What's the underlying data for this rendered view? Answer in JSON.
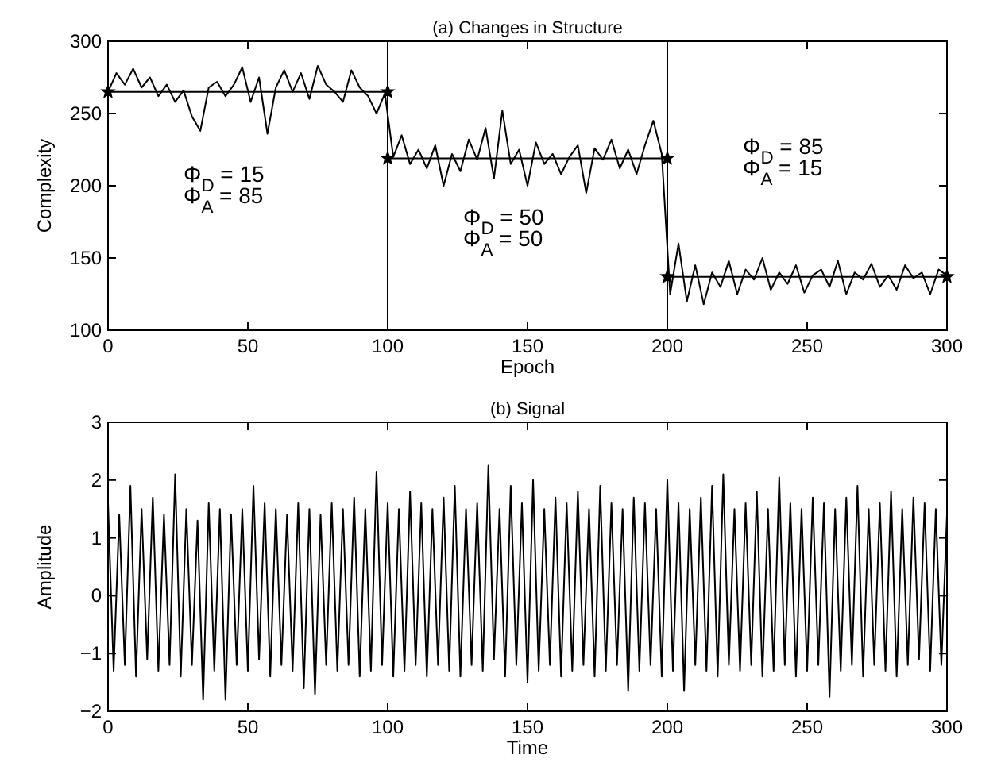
{
  "chart_data": [
    {
      "type": "line",
      "title": "(a) Changes in Structure",
      "xlabel": "Epoch",
      "ylabel": "Complexity",
      "xlim": [
        0,
        300
      ],
      "ylim": [
        100,
        300
      ],
      "xticks": [
        0,
        50,
        100,
        150,
        200,
        250,
        300
      ],
      "yticks": [
        100,
        150,
        200,
        250,
        300
      ],
      "grid": false,
      "series": [
        {
          "color": "#000000",
          "marker": "none",
          "x": [
            0,
            3,
            6,
            9,
            12,
            15,
            18,
            21,
            24,
            27,
            30,
            33,
            36,
            39,
            42,
            45,
            48,
            51,
            54,
            57,
            60,
            63,
            66,
            69,
            72,
            75,
            78,
            81,
            84,
            87,
            90,
            93,
            96,
            99,
            102,
            105,
            108,
            111,
            114,
            117,
            120,
            123,
            126,
            129,
            132,
            135,
            138,
            141,
            144,
            147,
            150,
            153,
            156,
            159,
            162,
            165,
            168,
            171,
            174,
            177,
            180,
            183,
            186,
            189,
            192,
            195,
            198,
            201,
            204,
            207,
            210,
            213,
            216,
            219,
            222,
            225,
            228,
            231,
            234,
            237,
            240,
            243,
            246,
            249,
            252,
            255,
            258,
            261,
            264,
            267,
            270,
            273,
            276,
            279,
            282,
            285,
            288,
            291,
            294,
            297,
            300
          ],
          "values": [
            265,
            278,
            270,
            281,
            268,
            275,
            262,
            270,
            258,
            266,
            248,
            238,
            268,
            272,
            262,
            270,
            282,
            258,
            275,
            236,
            268,
            280,
            265,
            278,
            260,
            283,
            270,
            265,
            258,
            280,
            268,
            262,
            250,
            264,
            220,
            235,
            215,
            225,
            212,
            228,
            200,
            222,
            210,
            232,
            218,
            240,
            205,
            252,
            215,
            225,
            200,
            230,
            215,
            222,
            208,
            220,
            228,
            195,
            226,
            218,
            232,
            212,
            225,
            208,
            228,
            245,
            222,
            125,
            160,
            120,
            145,
            118,
            140,
            130,
            148,
            125,
            142,
            135,
            150,
            128,
            140,
            132,
            145,
            126,
            138,
            142,
            130,
            148,
            125,
            140,
            135,
            146,
            130,
            138,
            128,
            145,
            136,
            140,
            125,
            142,
            138
          ]
        },
        {
          "color": "#000000",
          "marker": "star",
          "x": [
            0,
            100
          ],
          "values": [
            265,
            265
          ]
        },
        {
          "color": "#000000",
          "marker": "star",
          "x": [
            100,
            200
          ],
          "values": [
            219,
            219
          ]
        },
        {
          "color": "#000000",
          "marker": "star",
          "x": [
            200,
            300
          ],
          "values": [
            137,
            137
          ]
        }
      ],
      "ref_lines": [
        {
          "axis": "x",
          "value": 100,
          "color": "#000000"
        },
        {
          "axis": "x",
          "value": 200,
          "color": "#000000"
        }
      ],
      "annotations": [
        "Φ$_{D}$ = 15",
        "Φ$_{A}$ = 85",
        "Φ$_{D}$ = 50",
        "Φ$_{A}$ = 50",
        "Φ$_{D}$ = 85",
        "Φ$_{A}$ = 15"
      ]
    },
    {
      "type": "line",
      "title": "(b) Signal",
      "xlabel": "Time",
      "ylabel": "Amplitude",
      "xlim": [
        0,
        300
      ],
      "ylim": [
        -2,
        3
      ],
      "xticks": [
        0,
        50,
        100,
        150,
        200,
        250,
        300
      ],
      "yticks": [
        {
          "value": -2,
          "label": "−2"
        },
        {
          "value": -1,
          "label": "−1"
        },
        0,
        1,
        2,
        3
      ],
      "grid": false,
      "series": [
        {
          "color": "#000000",
          "marker": "none",
          "x": [
            0,
            2,
            4,
            6,
            8,
            10,
            12,
            14,
            16,
            18,
            20,
            22,
            24,
            26,
            28,
            30,
            32,
            34,
            36,
            38,
            40,
            42,
            44,
            46,
            48,
            50,
            52,
            54,
            56,
            58,
            60,
            62,
            64,
            66,
            68,
            70,
            72,
            74,
            76,
            78,
            80,
            82,
            84,
            86,
            88,
            90,
            92,
            94,
            96,
            98,
            100,
            102,
            104,
            106,
            108,
            110,
            112,
            114,
            116,
            118,
            120,
            122,
            124,
            126,
            128,
            130,
            132,
            134,
            136,
            138,
            140,
            142,
            144,
            146,
            148,
            150,
            152,
            154,
            156,
            158,
            160,
            162,
            164,
            166,
            168,
            170,
            172,
            174,
            176,
            178,
            180,
            182,
            184,
            186,
            188,
            190,
            192,
            194,
            196,
            198,
            200,
            202,
            204,
            206,
            208,
            210,
            212,
            214,
            216,
            218,
            220,
            222,
            224,
            226,
            228,
            230,
            232,
            234,
            236,
            238,
            240,
            242,
            244,
            246,
            248,
            250,
            252,
            254,
            256,
            258,
            260,
            262,
            264,
            266,
            268,
            270,
            272,
            274,
            276,
            278,
            280,
            282,
            284,
            286,
            288,
            290,
            292,
            294,
            296,
            298,
            300
          ],
          "values": [
            1.6,
            -1.3,
            1.4,
            -1.2,
            1.9,
            -1.4,
            1.5,
            -1.1,
            1.7,
            -1.3,
            1.4,
            -1.2,
            2.1,
            -1.4,
            1.5,
            -1.2,
            1.3,
            -1.8,
            1.6,
            -1.3,
            1.5,
            -1.8,
            1.4,
            -1.2,
            1.5,
            -1.3,
            1.9,
            -1.1,
            1.6,
            -1.4,
            1.5,
            -1.2,
            1.4,
            -1.3,
            1.6,
            -1.6,
            1.5,
            -1.7,
            1.4,
            -1.2,
            1.6,
            -1.3,
            1.5,
            -1.2,
            1.7,
            -1.4,
            1.5,
            -1.3,
            2.15,
            -1.2,
            1.6,
            -1.4,
            1.5,
            -1.3,
            1.8,
            -1.2,
            1.6,
            -1.4,
            1.5,
            -1.2,
            1.7,
            -1.3,
            1.9,
            -1.4,
            1.5,
            -1.2,
            1.6,
            -1.3,
            2.25,
            -1.1,
            1.5,
            -1.4,
            1.9,
            -1.2,
            1.6,
            -1.5,
            2.0,
            -1.3,
            1.5,
            -1.2,
            1.7,
            -1.4,
            1.6,
            -1.3,
            1.8,
            -1.2,
            1.5,
            -1.4,
            1.9,
            -1.3,
            1.6,
            -1.2,
            1.5,
            -1.65,
            1.7,
            -1.3,
            1.6,
            -1.2,
            1.5,
            -1.4,
            2.0,
            -1.3,
            1.6,
            -1.65,
            1.5,
            -1.2,
            1.7,
            -1.3,
            1.9,
            -1.4,
            2.1,
            -1.2,
            1.5,
            -1.3,
            1.6,
            -1.2,
            1.8,
            -1.4,
            1.5,
            -1.3,
            2.05,
            -1.2,
            1.6,
            -1.4,
            1.5,
            -1.3,
            1.7,
            -1.2,
            1.6,
            -1.75,
            1.5,
            -1.3,
            1.7,
            -1.2,
            1.9,
            -1.4,
            1.5,
            -1.2,
            1.6,
            -1.3,
            1.8,
            -1.4,
            1.5,
            -1.2,
            1.7,
            -1.1,
            1.6,
            -1.3,
            1.5,
            -1.2,
            1.4
          ]
        }
      ]
    }
  ]
}
